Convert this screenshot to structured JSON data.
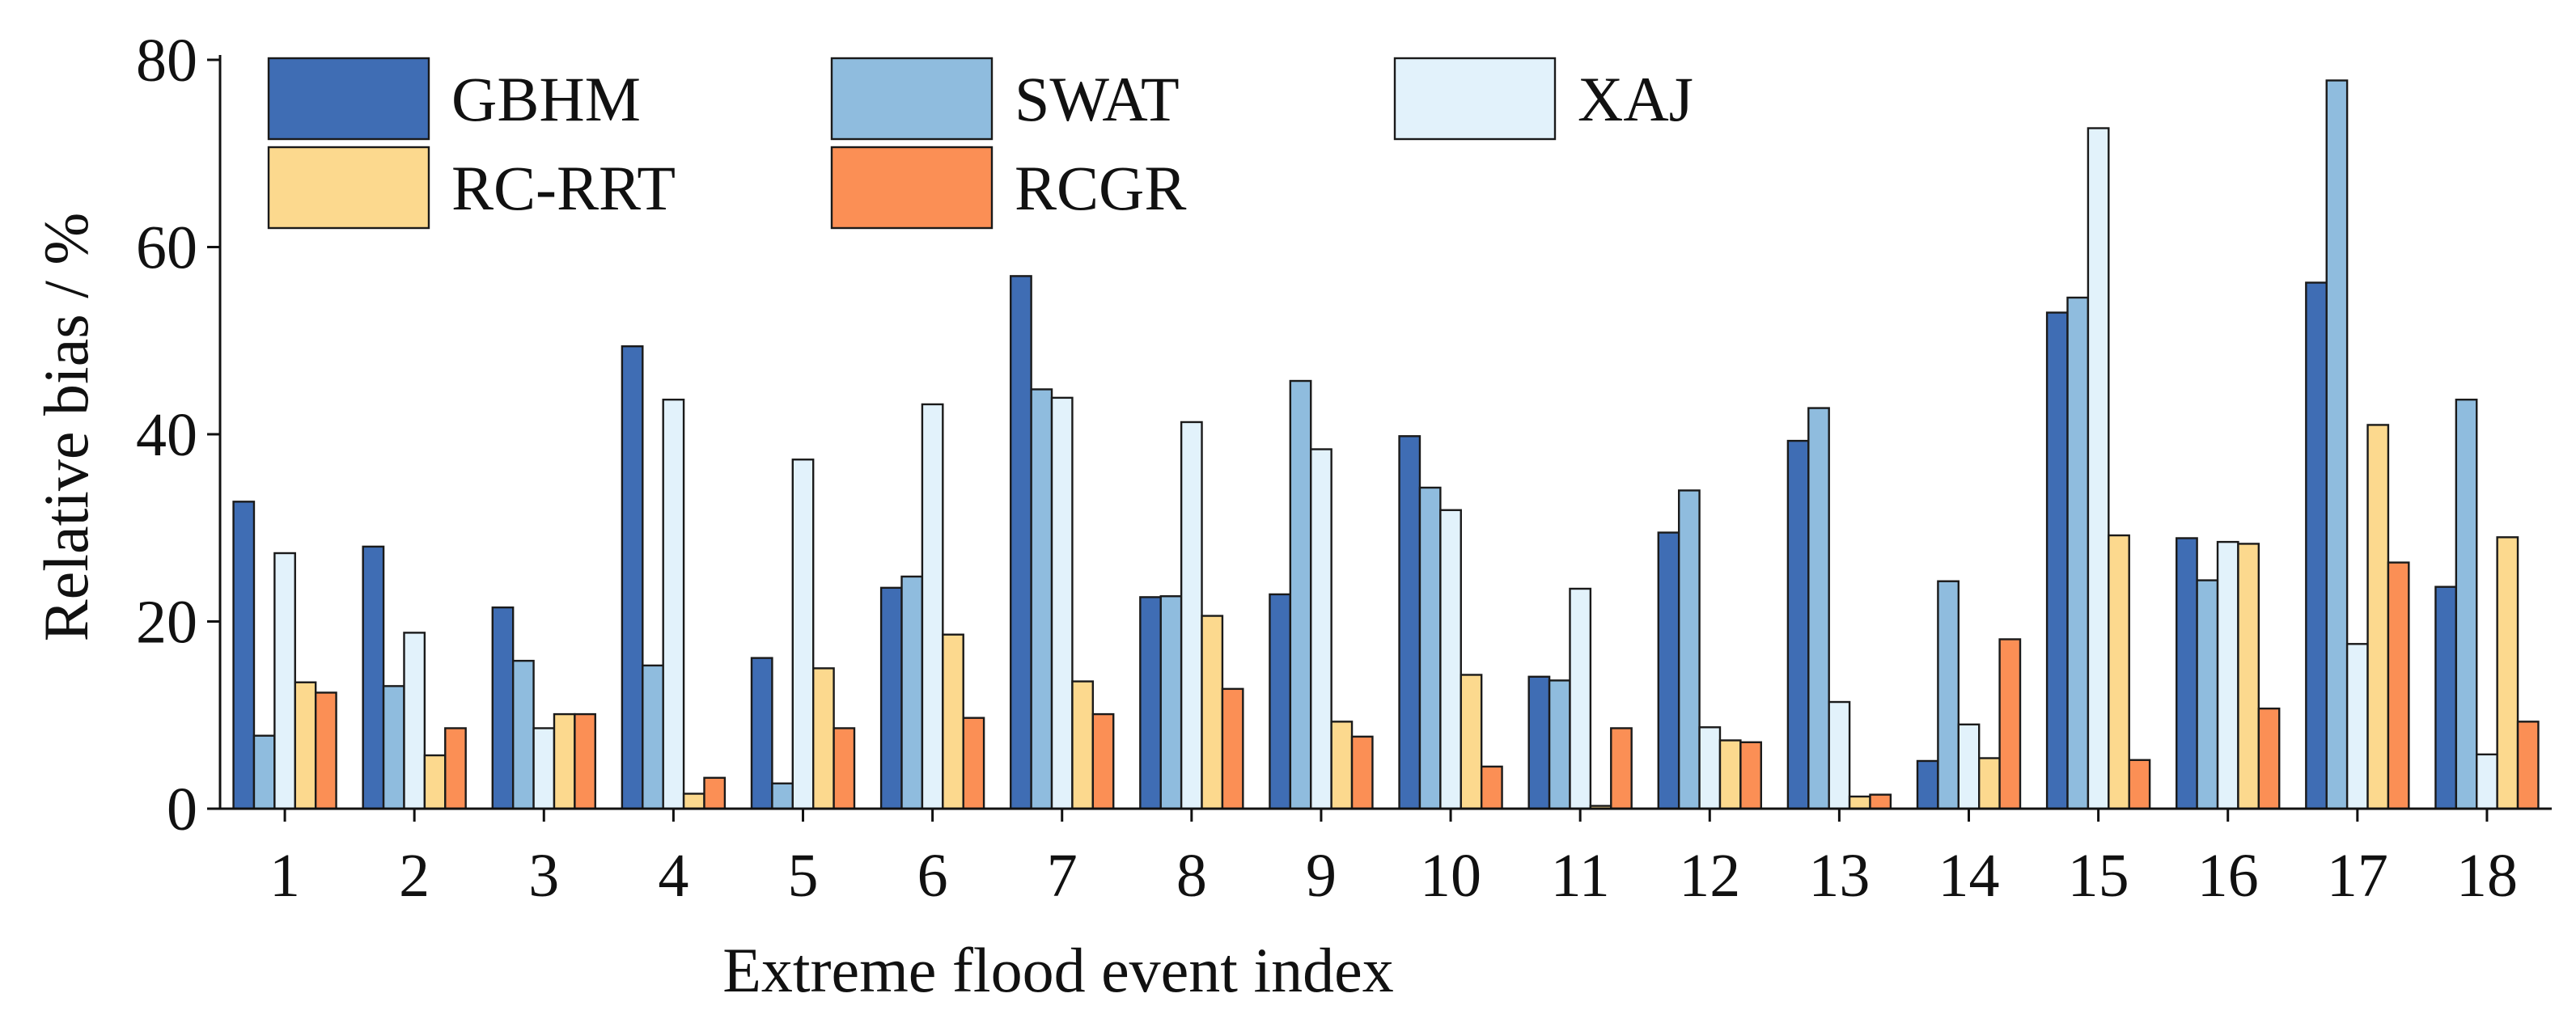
{
  "chart_data": {
    "type": "bar",
    "title": "",
    "xlabel": "Extreme flood event index",
    "ylabel": "Relative bias / %",
    "ylim": [
      0,
      80
    ],
    "yticks": [
      "0",
      "20",
      "40",
      "60",
      "80"
    ],
    "categories": [
      "1",
      "2",
      "3",
      "4",
      "5",
      "6",
      "7",
      "8",
      "9",
      "10",
      "11",
      "12",
      "13",
      "14",
      "15",
      "16",
      "17",
      "18"
    ],
    "grid": false,
    "legend_position": "top-left",
    "series": [
      {
        "name": "GBHM",
        "color": "#3f6db4",
        "values": [
          32.8,
          28.0,
          21.5,
          49.4,
          16.1,
          23.6,
          56.9,
          22.6,
          22.9,
          39.8,
          14.1,
          29.5,
          39.3,
          5.1,
          53.0,
          28.9,
          56.2,
          23.7
        ]
      },
      {
        "name": "SWAT",
        "color": "#8fbcde",
        "values": [
          7.8,
          13.1,
          15.8,
          15.3,
          2.7,
          24.8,
          44.8,
          22.7,
          45.7,
          34.3,
          13.7,
          34.0,
          42.8,
          24.3,
          54.6,
          24.4,
          77.8,
          43.7
        ]
      },
      {
        "name": "XAJ",
        "color": "#e2f2fb",
        "values": [
          27.3,
          18.8,
          8.6,
          43.7,
          37.3,
          43.2,
          43.9,
          41.3,
          38.4,
          31.9,
          23.5,
          8.7,
          11.4,
          9.0,
          72.7,
          28.5,
          17.6,
          5.8
        ]
      },
      {
        "name": "RC-RRT",
        "color": "#fcd98e",
        "values": [
          13.5,
          5.7,
          10.1,
          1.6,
          15.0,
          18.6,
          13.6,
          20.6,
          9.3,
          14.3,
          0.3,
          7.3,
          1.3,
          5.4,
          29.2,
          28.3,
          41.0,
          29.0
        ]
      },
      {
        "name": "RCGR",
        "color": "#fb8f55",
        "values": [
          12.4,
          8.6,
          10.1,
          3.3,
          8.6,
          9.7,
          10.1,
          12.8,
          7.7,
          4.5,
          8.6,
          7.1,
          1.5,
          18.1,
          5.2,
          10.7,
          26.3,
          9.3
        ]
      }
    ]
  }
}
